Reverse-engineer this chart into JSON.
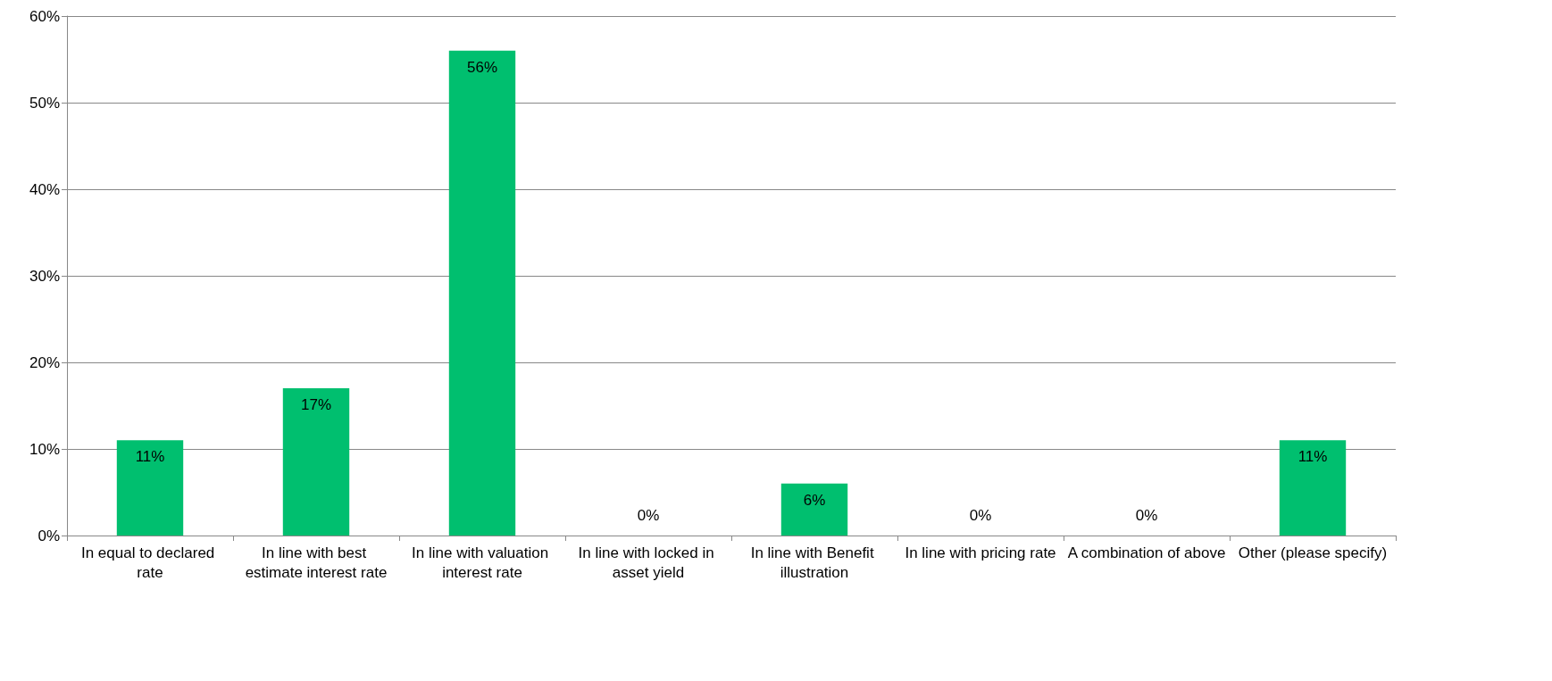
{
  "chart_data": {
    "type": "bar",
    "categories": [
      "In equal to declared rate",
      "In line with best estimate interest rate",
      "In line with valuation interest rate",
      "In line with locked in asset yield",
      "In line with Benefit illustration",
      "In line with pricing rate",
      "A combination of above",
      "Other (please specify)"
    ],
    "values": [
      11,
      17,
      56,
      0,
      6,
      0,
      0,
      11
    ],
    "value_labels": [
      "11%",
      "17%",
      "56%",
      "0%",
      "6%",
      "0%",
      "0%",
      "11%"
    ],
    "color": "#00bf6f",
    "ylim": [
      0,
      60
    ],
    "yticks": [
      {
        "value": 0,
        "label": "0%"
      },
      {
        "value": 10,
        "label": "10%"
      },
      {
        "value": 20,
        "label": "20%"
      },
      {
        "value": 30,
        "label": "30%"
      },
      {
        "value": 40,
        "label": "40%"
      },
      {
        "value": 50,
        "label": "50%"
      },
      {
        "value": 60,
        "label": "60%"
      }
    ],
    "grid": "y"
  }
}
